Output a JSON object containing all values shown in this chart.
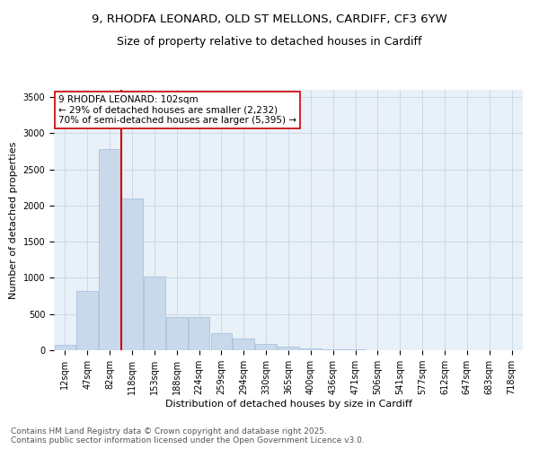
{
  "title_line1": "9, RHODFA LEONARD, OLD ST MELLONS, CARDIFF, CF3 6YW",
  "title_line2": "Size of property relative to detached houses in Cardiff",
  "xlabel": "Distribution of detached houses by size in Cardiff",
  "ylabel": "Number of detached properties",
  "bar_color": "#c8d9ec",
  "bar_edge_color": "#a0bcd8",
  "grid_color": "#ccd9e8",
  "background_color": "#e8f0f8",
  "vline_color": "#cc0000",
  "vline_x": 2.5,
  "annotation_text": "9 RHODFA LEONARD: 102sqm\n← 29% of detached houses are smaller (2,232)\n70% of semi-detached houses are larger (5,395) →",
  "annotation_box_color": "#ffffff",
  "annotation_box_edgecolor": "#cc0000",
  "categories": [
    "12sqm",
    "47sqm",
    "82sqm",
    "118sqm",
    "153sqm",
    "188sqm",
    "224sqm",
    "259sqm",
    "294sqm",
    "330sqm",
    "365sqm",
    "400sqm",
    "436sqm",
    "471sqm",
    "506sqm",
    "541sqm",
    "577sqm",
    "612sqm",
    "647sqm",
    "683sqm",
    "718sqm"
  ],
  "bar_heights": [
    75,
    820,
    2780,
    2100,
    1020,
    460,
    460,
    230,
    160,
    85,
    50,
    25,
    15,
    8,
    6,
    4,
    3,
    2,
    1,
    1,
    1
  ],
  "ylim": [
    0,
    3600
  ],
  "yticks": [
    0,
    500,
    1000,
    1500,
    2000,
    2500,
    3000,
    3500
  ],
  "footnote": "Contains HM Land Registry data © Crown copyright and database right 2025.\nContains public sector information licensed under the Open Government Licence v3.0.",
  "title_fontsize": 9.5,
  "subtitle_fontsize": 9,
  "axis_label_fontsize": 8,
  "tick_fontsize": 7,
  "footnote_fontsize": 6.5
}
